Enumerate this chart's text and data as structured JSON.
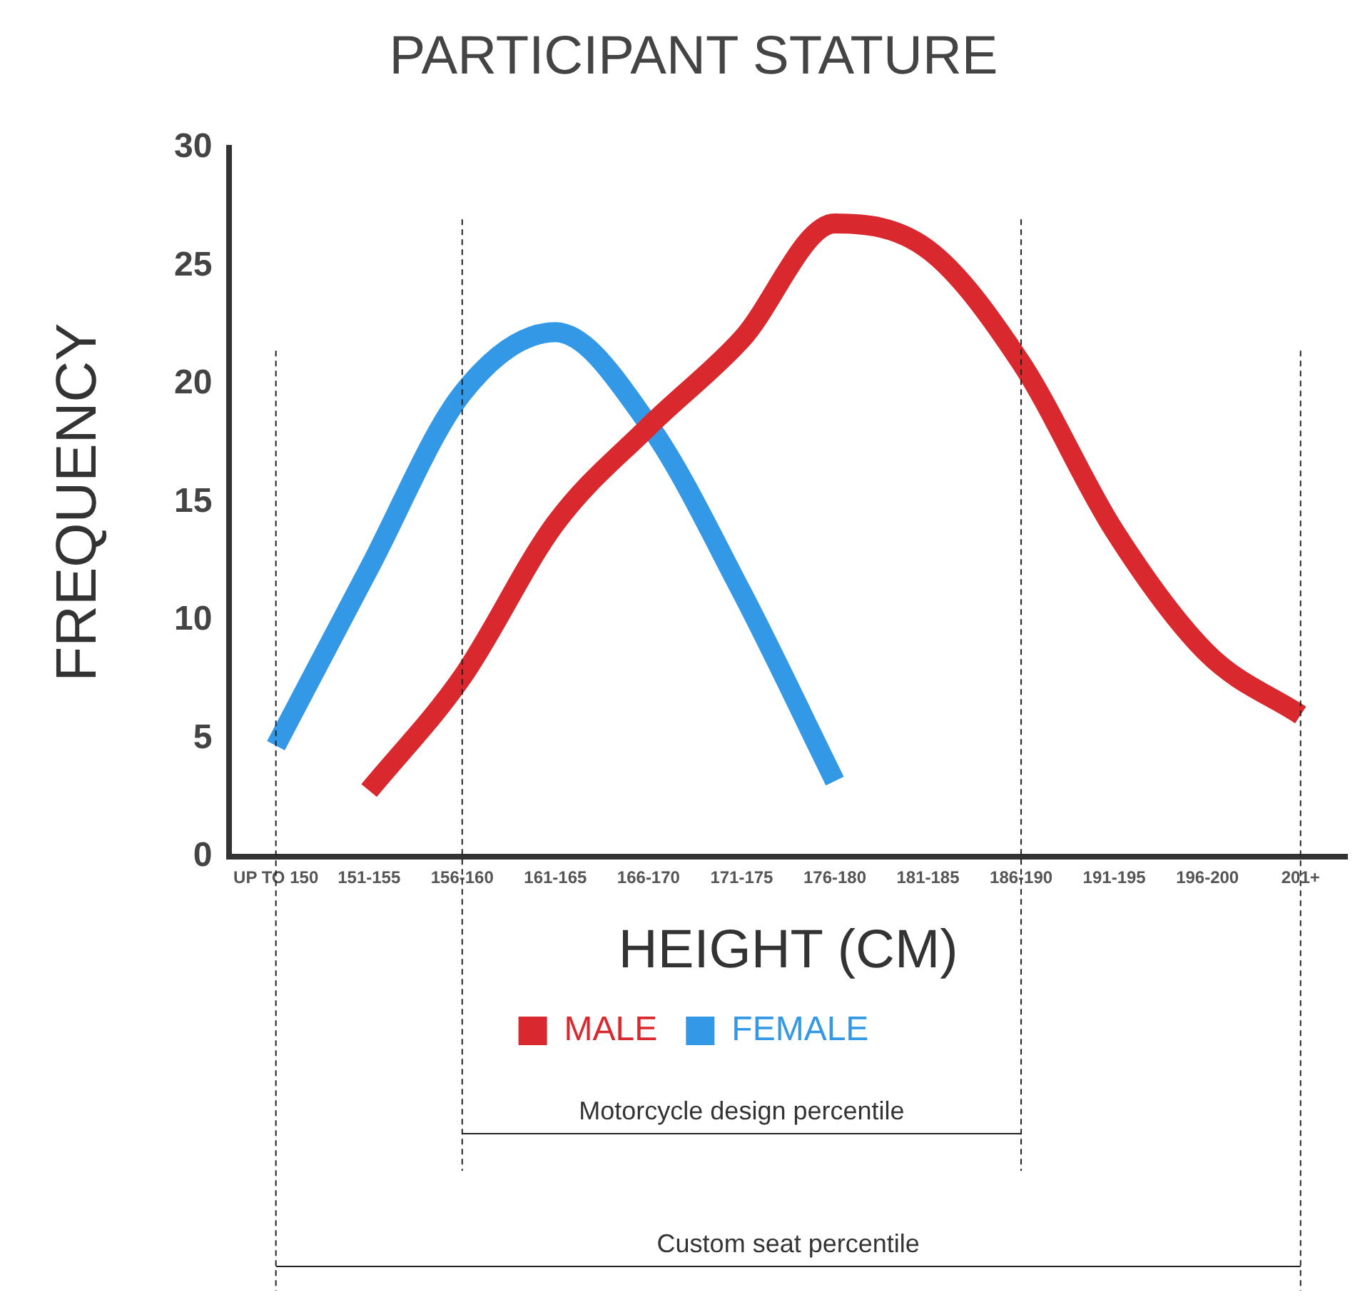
{
  "chart_data": {
    "type": "line",
    "title": "PARTICIPANT STATURE",
    "xlabel": "HEIGHT (CM)",
    "ylabel": "FREQUENCY",
    "categories": [
      "UP TO 150",
      "151-155",
      "156-160",
      "161-165",
      "166-170",
      "171-175",
      "176-180",
      "181-185",
      "186-190",
      "191-195",
      "196-200",
      "201+"
    ],
    "series": [
      {
        "name": "MALE",
        "color": "#d9292f",
        "values": [
          null,
          2.8,
          7.6,
          14.1,
          18.2,
          21.9,
          26.8,
          25.7,
          20.9,
          13.8,
          8.6,
          6.0
        ]
      },
      {
        "name": "FEMALE",
        "color": "#3399e6",
        "values": [
          4.7,
          12.2,
          19.6,
          22.2,
          18.3,
          11.2,
          3.2,
          null,
          null,
          null,
          null,
          null
        ]
      }
    ],
    "ylim": [
      0,
      30
    ],
    "yticks": [
      0,
      5,
      10,
      15,
      20,
      25,
      30
    ],
    "ref_lines": [
      {
        "axis": "x",
        "value": "156-160",
        "color": "#222222",
        "line_style": "dashed"
      },
      {
        "axis": "x",
        "value": "186-190",
        "color": "#222222",
        "line_style": "dashed"
      },
      {
        "axis": "x",
        "value": "UP TO 150",
        "color": "#222222",
        "line_style": "dashed"
      },
      {
        "axis": "x",
        "value": "201+",
        "color": "#222222",
        "line_style": "dashed"
      }
    ],
    "annotations": [
      "Motorcycle design percentile",
      "Custom seat percentile"
    ],
    "grid": false,
    "legend": "bottom",
    "marker": "none",
    "line_style": "solid"
  }
}
